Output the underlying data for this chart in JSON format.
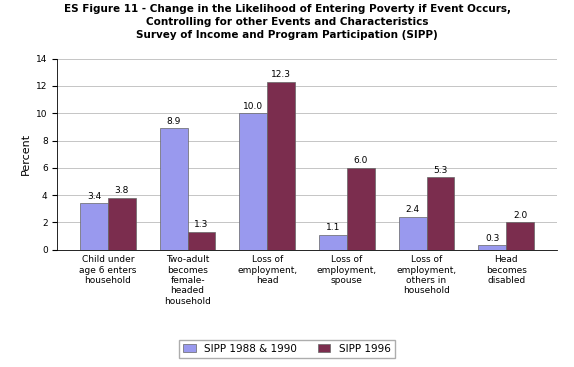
{
  "title_line1": "ES Figure 11 - Change in the Likelihood of Entering Poverty if Event Occurs,",
  "title_line2": "Controlling for other Events and Characteristics",
  "title_line3": "Survey of Income and Program Participation (SIPP)",
  "categories": [
    "Child under\nage 6 enters\nhousehold",
    "Two-adult\nbecomes\nfemale-\nheaded\nhousehold",
    "Loss of\nemployment,\nhead",
    "Loss of\nemployment,\nspouse",
    "Loss of\nemployment,\nothers in\nhousehold",
    "Head\nbecomes\ndisabled"
  ],
  "series1_label": "SIPP 1988 & 1990",
  "series2_label": "SIPP 1996",
  "series1_values": [
    3.4,
    8.9,
    10.0,
    1.1,
    2.4,
    0.3
  ],
  "series2_values": [
    3.8,
    1.3,
    12.3,
    6.0,
    5.3,
    2.0
  ],
  "series1_color": "#9999ee",
  "series2_color": "#7b2d4e",
  "ylabel": "Percent",
  "ylim": [
    0,
    14
  ],
  "yticks": [
    0,
    2,
    4,
    6,
    8,
    10,
    12,
    14
  ],
  "bar_width": 0.35,
  "title_fontsize": 7.5,
  "axis_fontsize": 8,
  "tick_fontsize": 6.5,
  "label_fontsize": 6.5,
  "legend_fontsize": 7.5,
  "background_color": "#ffffff",
  "grid_color": "#bbbbbb"
}
